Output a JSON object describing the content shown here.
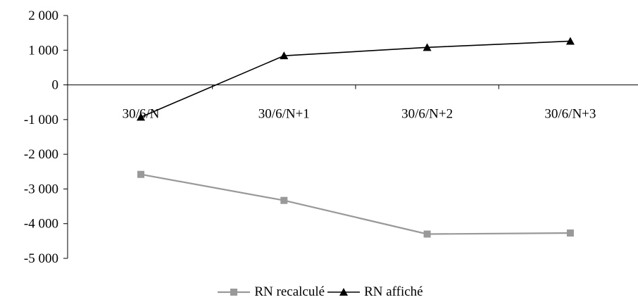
{
  "chart_data": {
    "type": "line",
    "categories": [
      "30/6/N",
      "30/6/N+1",
      "30/6/N+2",
      "30/6/N+3"
    ],
    "ylim": [
      -5000,
      2000
    ],
    "yticks": [
      2000,
      1000,
      0,
      -1000,
      -2000,
      -3000,
      -4000,
      -5000
    ],
    "ytick_labels": [
      "2 000",
      "1 000",
      "0",
      "-1 000",
      "-2 000",
      "-3 000",
      "-4 000",
      "-5 000"
    ],
    "series": [
      {
        "name": "RN recalculé",
        "values": [
          -2580,
          -3330,
          -4300,
          -4270
        ],
        "color": "#999999",
        "marker": "square"
      },
      {
        "name": "RN affiché",
        "values": [
          -930,
          840,
          1080,
          1260
        ],
        "color": "#000000",
        "marker": "triangle"
      }
    ],
    "title": "",
    "xlabel": "",
    "ylabel": "",
    "grid": false,
    "legend_position": "bottom"
  }
}
